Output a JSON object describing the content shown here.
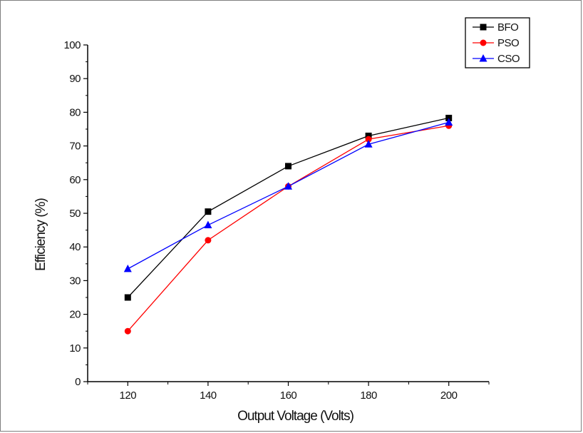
{
  "chart_data": {
    "type": "line",
    "title": "",
    "xlabel": "Output Voltage (Volts)",
    "ylabel": "Efficiency (%)",
    "x": [
      120,
      140,
      160,
      180,
      200
    ],
    "xlim": [
      110,
      210
    ],
    "ylim": [
      0,
      100
    ],
    "xticks": [
      "120",
      "140",
      "160",
      "180",
      "200"
    ],
    "yticks": [
      "0",
      "10",
      "20",
      "30",
      "40",
      "50",
      "60",
      "70",
      "80",
      "90",
      "100"
    ],
    "grid": false,
    "legend_position": "top-right",
    "series": [
      {
        "name": "BFO",
        "values": [
          25,
          50.5,
          64,
          73,
          78.3
        ],
        "color": "#000000",
        "marker": "square"
      },
      {
        "name": "PSO",
        "values": [
          15,
          42,
          58,
          72,
          76
        ],
        "color": "#ff0000",
        "marker": "circle"
      },
      {
        "name": "CSO",
        "values": [
          33.5,
          46.5,
          58,
          70.5,
          77
        ],
        "color": "#0000ff",
        "marker": "triangle"
      }
    ]
  }
}
